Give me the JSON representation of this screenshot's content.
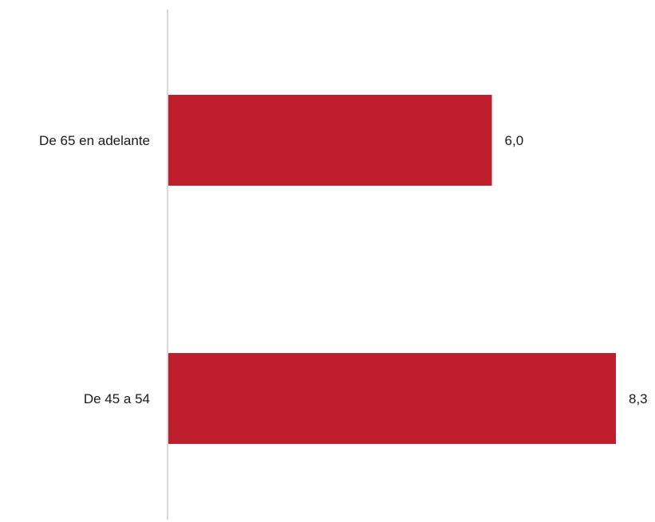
{
  "chart_data": {
    "type": "bar",
    "orientation": "horizontal",
    "categories": [
      "De 65 en adelante",
      "De 45 a 54"
    ],
    "values": [
      6.0,
      8.3
    ],
    "value_labels": [
      "6,0",
      "8,3"
    ],
    "title": "",
    "xlabel": "",
    "ylabel": "",
    "xlim": [
      0,
      8.3
    ],
    "grid": false,
    "legend": "none",
    "colors": {
      "bar": "#be1e2d",
      "axis": "#d9d9d9",
      "text": "#1a1a1a"
    }
  }
}
